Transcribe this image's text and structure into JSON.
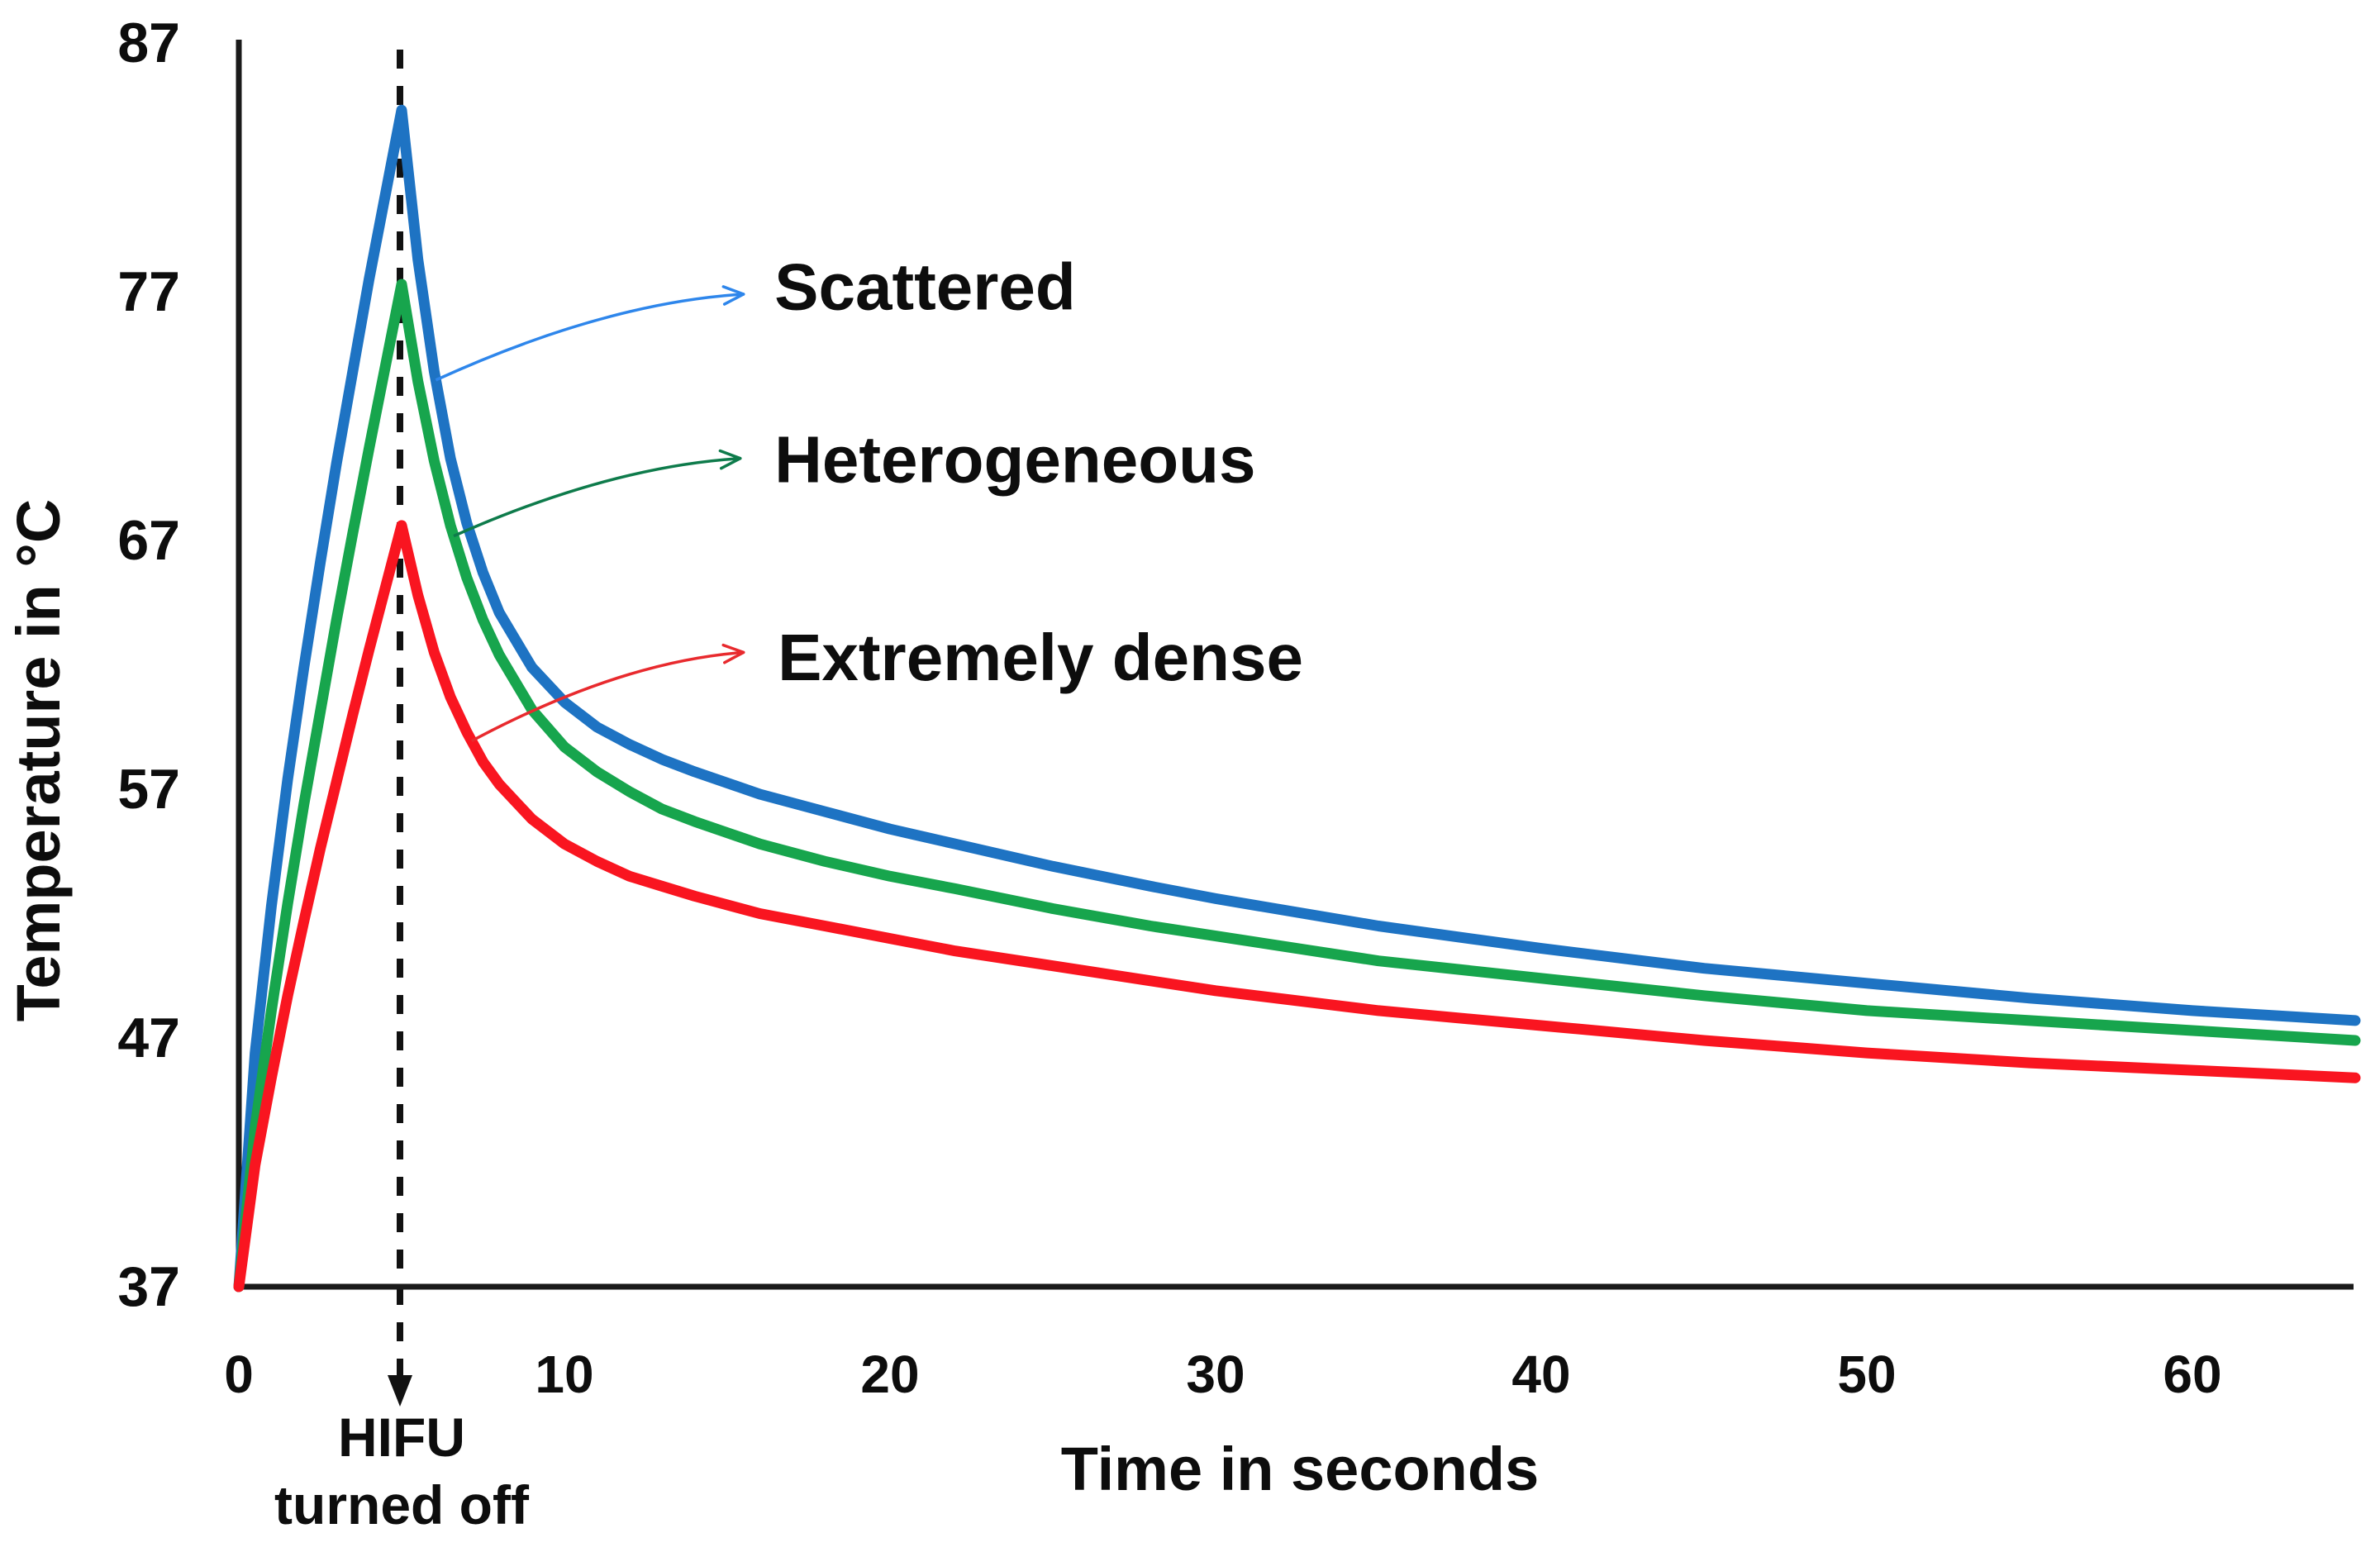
{
  "figure": {
    "background": "#FFFFFF",
    "axis_color": "#1A1A1A",
    "text_color": "#0D0D0D"
  },
  "chart_data": {
    "type": "line",
    "title": "",
    "xlabel": "Time in seconds",
    "ylabel": "Temperature in °C",
    "x_ticks": [
      0,
      10,
      20,
      30,
      40,
      50,
      60
    ],
    "y_ticks": [
      37,
      47,
      57,
      67,
      77,
      87
    ],
    "xlim": [
      0,
      65
    ],
    "ylim": [
      37,
      87
    ],
    "grid": false,
    "legend_position": "inline-callouts",
    "event_line": {
      "t": 5,
      "style": "dashed",
      "label_line1": "HIFU",
      "label_line2": "turned off"
    },
    "series": [
      {
        "name": "Scattered",
        "color": "#1E73C3",
        "peak_T": 84.3,
        "peak_t": 5,
        "final_T": 47.7,
        "points": [
          [
            0,
            37
          ],
          [
            0.5,
            46.4
          ],
          [
            1,
            52.3
          ],
          [
            1.5,
            57.4
          ],
          [
            2,
            61.9
          ],
          [
            2.5,
            66.1
          ],
          [
            3,
            70.1
          ],
          [
            3.5,
            73.8
          ],
          [
            4,
            77.5
          ],
          [
            4.5,
            80.9
          ],
          [
            5,
            84.3
          ],
          [
            5.5,
            78.3
          ],
          [
            6,
            73.8
          ],
          [
            6.5,
            70.3
          ],
          [
            7,
            67.7
          ],
          [
            7.5,
            65.7
          ],
          [
            8,
            64.1
          ],
          [
            9,
            61.9
          ],
          [
            10,
            60.5
          ],
          [
            11,
            59.5
          ],
          [
            12,
            58.8
          ],
          [
            13,
            58.2
          ],
          [
            14,
            57.7
          ],
          [
            16,
            56.8
          ],
          [
            18,
            56.1
          ],
          [
            20,
            55.4
          ],
          [
            22,
            54.8
          ],
          [
            25,
            53.9
          ],
          [
            28,
            53.1
          ],
          [
            30,
            52.6
          ],
          [
            35,
            51.5
          ],
          [
            40,
            50.6
          ],
          [
            45,
            49.8
          ],
          [
            50,
            49.2
          ],
          [
            55,
            48.6
          ],
          [
            60,
            48.1
          ],
          [
            65,
            47.7
          ]
        ]
      },
      {
        "name": "Heterogeneous",
        "color": "#17A54D",
        "peak_T": 77.3,
        "peak_t": 5,
        "final_T": 46.9,
        "points": [
          [
            0,
            37
          ],
          [
            0.5,
            43.4
          ],
          [
            1,
            48.1
          ],
          [
            1.5,
            52.4
          ],
          [
            2,
            56.4
          ],
          [
            2.5,
            60.1
          ],
          [
            3,
            63.8
          ],
          [
            3.5,
            67.3
          ],
          [
            4,
            70.7
          ],
          [
            4.5,
            74.0
          ],
          [
            5,
            77.3
          ],
          [
            5.5,
            73.4
          ],
          [
            6,
            70.2
          ],
          [
            6.5,
            67.6
          ],
          [
            7,
            65.5
          ],
          [
            7.5,
            63.8
          ],
          [
            8,
            62.4
          ],
          [
            9,
            60.2
          ],
          [
            10,
            58.7
          ],
          [
            11,
            57.7
          ],
          [
            12,
            56.9
          ],
          [
            13,
            56.2
          ],
          [
            14,
            55.7
          ],
          [
            16,
            54.8
          ],
          [
            18,
            54.1
          ],
          [
            20,
            53.5
          ],
          [
            22,
            53.0
          ],
          [
            25,
            52.2
          ],
          [
            28,
            51.5
          ],
          [
            30,
            51.1
          ],
          [
            35,
            50.1
          ],
          [
            40,
            49.4
          ],
          [
            45,
            48.7
          ],
          [
            50,
            48.1
          ],
          [
            55,
            47.7
          ],
          [
            60,
            47.3
          ],
          [
            65,
            46.9
          ]
        ]
      },
      {
        "name": "Extremely dense",
        "color": "#F91520",
        "peak_T": 67.6,
        "peak_t": 5,
        "final_T": 45.4,
        "points": [
          [
            0,
            37
          ],
          [
            0.5,
            41.9
          ],
          [
            1,
            45.4
          ],
          [
            1.5,
            48.7
          ],
          [
            2,
            51.7
          ],
          [
            2.5,
            54.6
          ],
          [
            3,
            57.3
          ],
          [
            3.5,
            60.0
          ],
          [
            4,
            62.6
          ],
          [
            4.5,
            65.1
          ],
          [
            5,
            67.6
          ],
          [
            5.5,
            64.8
          ],
          [
            6,
            62.5
          ],
          [
            6.5,
            60.7
          ],
          [
            7,
            59.3
          ],
          [
            7.5,
            58.1
          ],
          [
            8,
            57.2
          ],
          [
            9,
            55.8
          ],
          [
            10,
            54.8
          ],
          [
            11,
            54.1
          ],
          [
            12,
            53.5
          ],
          [
            13,
            53.1
          ],
          [
            14,
            52.7
          ],
          [
            16,
            52.0
          ],
          [
            18,
            51.5
          ],
          [
            20,
            51.0
          ],
          [
            22,
            50.5
          ],
          [
            25,
            49.9
          ],
          [
            28,
            49.3
          ],
          [
            30,
            48.9
          ],
          [
            35,
            48.1
          ],
          [
            40,
            47.5
          ],
          [
            45,
            46.9
          ],
          [
            50,
            46.4
          ],
          [
            55,
            46.0
          ],
          [
            60,
            45.7
          ],
          [
            65,
            45.4
          ]
        ]
      }
    ],
    "callouts": [
      {
        "label": "Scattered",
        "series": "Scattered",
        "arrow_color": "#2E86EB",
        "tail_t": 6.05,
        "head": {
          "t": 15.5,
          "T": 76.9
        },
        "label_anchor": {
          "t": 16.45,
          "T": 77.2
        }
      },
      {
        "label": "Heterogeneous",
        "series": "Heterogeneous",
        "arrow_color": "#0E7B4B",
        "tail_t": 6.6,
        "head": {
          "t": 15.4,
          "T": 70.3
        },
        "label_anchor": {
          "t": 16.45,
          "T": 70.25
        }
      },
      {
        "label": "Extremely dense",
        "series": "Extremely dense",
        "arrow_color": "#E82A2E",
        "tail_t": 7.15,
        "head": {
          "t": 15.5,
          "T": 62.5
        },
        "label_anchor": {
          "t": 16.55,
          "T": 62.3
        }
      }
    ]
  }
}
